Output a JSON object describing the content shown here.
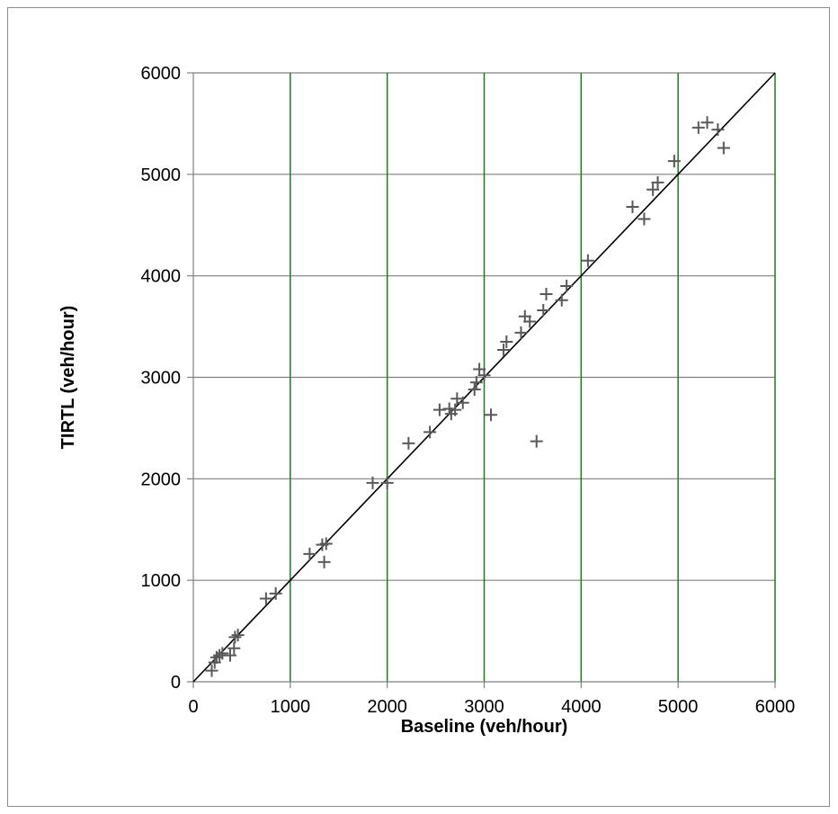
{
  "chart_data": {
    "type": "scatter",
    "title": "",
    "xlabel": "Baseline (veh/hour)",
    "ylabel": "TIRTL (veh/hour)",
    "xlim": [
      0,
      6000
    ],
    "ylim": [
      0,
      6000
    ],
    "xticks": [
      0,
      1000,
      2000,
      3000,
      4000,
      5000,
      6000
    ],
    "yticks": [
      0,
      1000,
      2000,
      3000,
      4000,
      5000,
      6000
    ],
    "grid": true,
    "legend": "none",
    "reference_line": {
      "from": [
        0,
        0
      ],
      "to": [
        6000,
        6000
      ]
    },
    "colors": {
      "markers": "#595959",
      "horizontal_grid": "#808080",
      "vertical_grid": "#1f7a1f",
      "reference_line": "#000000"
    },
    "marker": "+",
    "points": [
      [
        190,
        110
      ],
      [
        220,
        190
      ],
      [
        240,
        240
      ],
      [
        270,
        260
      ],
      [
        300,
        280
      ],
      [
        380,
        260
      ],
      [
        420,
        330
      ],
      [
        430,
        440
      ],
      [
        460,
        460
      ],
      [
        750,
        820
      ],
      [
        850,
        870
      ],
      [
        1200,
        1260
      ],
      [
        1330,
        1350
      ],
      [
        1350,
        1180
      ],
      [
        1370,
        1360
      ],
      [
        1850,
        1960
      ],
      [
        2000,
        1960
      ],
      [
        2220,
        2350
      ],
      [
        2440,
        2460
      ],
      [
        2540,
        2680
      ],
      [
        2640,
        2690
      ],
      [
        2660,
        2640
      ],
      [
        2700,
        2680
      ],
      [
        2720,
        2790
      ],
      [
        2780,
        2750
      ],
      [
        2900,
        2880
      ],
      [
        2920,
        2950
      ],
      [
        2950,
        3080
      ],
      [
        3000,
        3020
      ],
      [
        3070,
        2630
      ],
      [
        3540,
        2370
      ],
      [
        3200,
        3270
      ],
      [
        3230,
        3350
      ],
      [
        3380,
        3440
      ],
      [
        3420,
        3600
      ],
      [
        3470,
        3550
      ],
      [
        3610,
        3660
      ],
      [
        3640,
        3820
      ],
      [
        3800,
        3760
      ],
      [
        3850,
        3900
      ],
      [
        4070,
        4150
      ],
      [
        4530,
        4680
      ],
      [
        4650,
        4560
      ],
      [
        4740,
        4850
      ],
      [
        4790,
        4920
      ],
      [
        4960,
        5130
      ],
      [
        5210,
        5460
      ],
      [
        5300,
        5510
      ],
      [
        5410,
        5440
      ],
      [
        5470,
        5260
      ]
    ]
  }
}
